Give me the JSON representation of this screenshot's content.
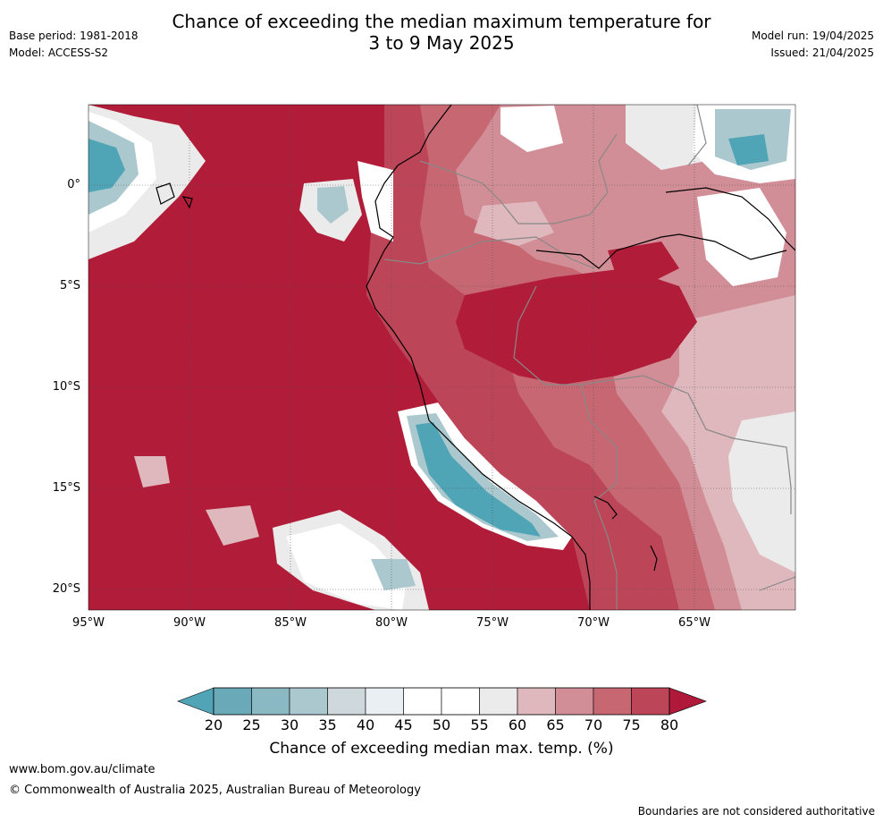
{
  "header": {
    "base_period": "Base period: 1981-2018",
    "model": "Model: ACCESS-S2",
    "title_line1": "Chance of exceeding the median maximum temperature for",
    "title_line2": "3 to 9 May 2025",
    "model_run": "Model run: 19/04/2025",
    "issued": "Issued: 21/04/2025"
  },
  "map": {
    "lat_ticks": [
      "0°",
      "5°S",
      "10°S",
      "15°S",
      "20°S"
    ],
    "lon_ticks": [
      "95°W",
      "90°W",
      "85°W",
      "80°W",
      "75°W",
      "70°W",
      "65°W"
    ],
    "background_color": "#b11c38",
    "cool_color": "#4fa5b6"
  },
  "colorbar": {
    "ticks": [
      "20",
      "25",
      "30",
      "35",
      "40",
      "45",
      "50",
      "55",
      "60",
      "65",
      "70",
      "75",
      "80"
    ],
    "colors": [
      "#6aa9b8",
      "#8ab8c3",
      "#aac8ce",
      "#cfd8dc",
      "#e9eff2",
      "#ffffff",
      "#ffffff",
      "#ecebec",
      "#dfb8be",
      "#d28e97",
      "#c66772",
      "#bc4657"
    ],
    "low_extend_color": "#50a4b6",
    "high_extend_color": "#b1193a",
    "label": "Chance of exceeding median max. temp. (%)"
  },
  "footer": {
    "url": "www.bom.gov.au/climate",
    "copyright": "© Commonwealth of Australia 2025, Australian Bureau of Meteorology",
    "disclaimer": "Boundaries are not considered authoritative"
  }
}
